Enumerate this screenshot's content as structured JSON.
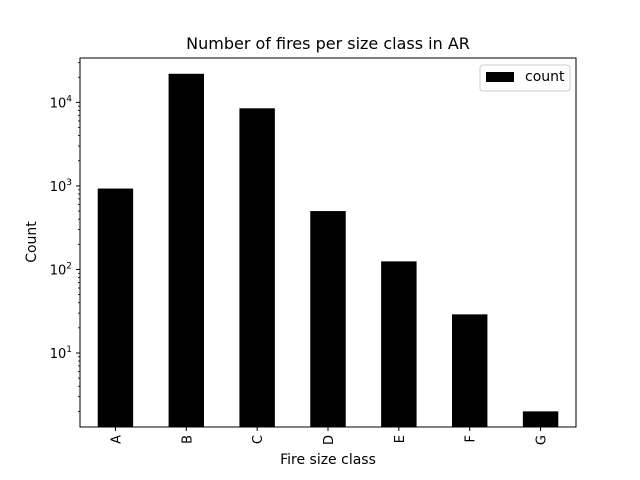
{
  "chart_data": {
    "type": "bar",
    "title": "Number of fires per size class in AR",
    "xlabel": "Fire size class",
    "ylabel": "Count",
    "yscale": "log",
    "ylim": [
      1.3,
      34000
    ],
    "categories": [
      "A",
      "B",
      "C",
      "D",
      "E",
      "F",
      "G"
    ],
    "series": [
      {
        "name": "count",
        "values": [
          930,
          22000,
          8500,
          500,
          125,
          29,
          2
        ]
      }
    ],
    "y_ticks": [
      {
        "value": 10,
        "base": "10",
        "exp": "1"
      },
      {
        "value": 100,
        "base": "10",
        "exp": "2"
      },
      {
        "value": 1000,
        "base": "10",
        "exp": "3"
      },
      {
        "value": 10000,
        "base": "10",
        "exp": "4"
      }
    ],
    "legend_position": "top-right",
    "bar_color": "#000000",
    "grid": false
  }
}
